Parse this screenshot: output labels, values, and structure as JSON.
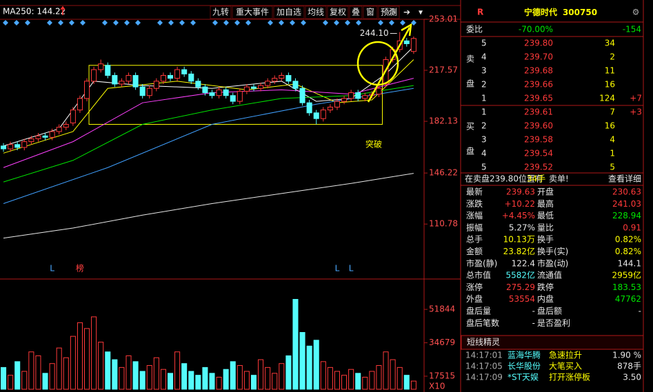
{
  "toolbar": {
    "ma": "MA250: 144.22",
    "buttons": [
      "九转",
      "重大事件",
      "加自选",
      "均线",
      "复权",
      "叠",
      "窗",
      "预测"
    ]
  },
  "chart_data": [
    {
      "type": "candlestick",
      "xlim": [
        -0.5,
        60.5
      ],
      "ylim": [
        75,
        256.8
      ],
      "yticks": [
        253.01,
        217.57,
        182.13,
        146.22,
        110.78
      ],
      "up_color": "#ff3a3a",
      "down_color": "#54fcfc",
      "open": [
        165,
        163,
        166,
        164,
        168,
        170,
        172,
        171,
        175,
        178,
        181,
        190,
        198,
        210,
        218,
        221,
        214,
        208,
        210,
        214,
        206,
        200,
        205,
        210,
        214,
        212,
        218,
        215,
        210,
        206,
        202,
        200,
        204,
        200,
        196,
        203,
        206,
        205,
        207,
        210,
        212,
        214,
        210,
        205,
        195,
        188,
        184,
        190,
        192,
        196,
        198,
        202,
        198,
        200,
        201,
        208,
        225,
        232,
        238,
        230.63
      ],
      "high": [
        167,
        168,
        168,
        170,
        172,
        174,
        174,
        177,
        180,
        182,
        192,
        200,
        212,
        220,
        225,
        223,
        216,
        212,
        216,
        216,
        208,
        207,
        212,
        216,
        216,
        220,
        220,
        217,
        212,
        208,
        204,
        206,
        206,
        202,
        205,
        208,
        208,
        209,
        212,
        214,
        216,
        216,
        212,
        207,
        197,
        190,
        192,
        194,
        198,
        200,
        204,
        204,
        202,
        203,
        207,
        227,
        234,
        244.1,
        240,
        241.03
      ],
      "low": [
        161,
        161,
        162,
        162,
        166,
        168,
        169,
        169,
        173,
        176,
        179,
        188,
        196,
        208,
        216,
        212,
        206,
        206,
        208,
        204,
        198,
        198,
        203,
        208,
        210,
        210,
        213,
        208,
        204,
        200,
        198,
        198,
        198,
        194,
        194,
        201,
        203,
        203,
        205,
        208,
        210,
        208,
        203,
        193,
        186,
        180,
        182,
        188,
        190,
        194,
        196,
        196,
        196,
        198,
        199,
        206,
        223,
        230,
        234,
        228.94
      ],
      "close": [
        163,
        166,
        164,
        168,
        170,
        172,
        171,
        175,
        178,
        180,
        190,
        198,
        210,
        218,
        222,
        214,
        208,
        210,
        214,
        206,
        200,
        205,
        210,
        214,
        212,
        218,
        215,
        210,
        206,
        202,
        200,
        204,
        200,
        196,
        203,
        206,
        205,
        207,
        210,
        212,
        214,
        210,
        205,
        195,
        188,
        184,
        190,
        192,
        196,
        198,
        202,
        198,
        200,
        201,
        205,
        225,
        232,
        238,
        236,
        239.63
      ],
      "high_label": "244.10",
      "annotation": "突破",
      "range_box": {
        "low": 180,
        "high": 221
      },
      "moving_averages": [
        {
          "color": "#ffffff",
          "x": [
            0,
            8,
            13,
            20,
            30,
            40,
            45,
            50,
            55,
            59
          ],
          "values": [
            165,
            177,
            210,
            207,
            205,
            210,
            196,
            198,
            215,
            234
          ]
        },
        {
          "color": "#ffff00",
          "x": [
            0,
            10,
            15,
            25,
            35,
            42,
            48,
            53,
            59
          ],
          "values": [
            160,
            175,
            205,
            210,
            204,
            208,
            195,
            197,
            225
          ]
        },
        {
          "color": "#ff40ff",
          "x": [
            0,
            10,
            20,
            30,
            40,
            50,
            59
          ],
          "values": [
            150,
            168,
            195,
            202,
            204,
            201,
            212
          ]
        },
        {
          "color": "#00e600",
          "x": [
            0,
            10,
            20,
            30,
            40,
            50,
            59
          ],
          "values": [
            140,
            155,
            180,
            190,
            198,
            200,
            207
          ]
        },
        {
          "color": "#40a0ff",
          "x": [
            0,
            15,
            30,
            45,
            59
          ],
          "values": [
            125,
            150,
            180,
            194,
            205
          ]
        },
        {
          "color": "#e8e8e8",
          "x": [
            0,
            10,
            20,
            30,
            40,
            50,
            59
          ],
          "values": [
            101,
            108,
            117,
            125,
            132,
            139,
            146
          ]
        }
      ],
      "markers": [
        {
          "label": "L",
          "x": 7
        },
        {
          "label": "榜",
          "x": 11
        },
        {
          "label": "L",
          "x": 48
        },
        {
          "label": "L",
          "x": 50
        }
      ]
    },
    {
      "type": "bar",
      "ylim": [
        10800,
        63900
      ],
      "yticks": [
        17515,
        34679,
        51844
      ],
      "unit_label": "X10",
      "values": [
        22000,
        18000,
        25000,
        20000,
        30000,
        28000,
        19000,
        24000,
        32000,
        27000,
        38000,
        45000,
        42000,
        48000,
        35000,
        30000,
        26000,
        22000,
        28000,
        25000,
        20000,
        23000,
        27000,
        21000,
        19000,
        30000,
        24000,
        20000,
        18000,
        22000,
        19000,
        17000,
        21000,
        25000,
        23000,
        20000,
        18000,
        26000,
        22000,
        19000,
        24000,
        28000,
        57000,
        40000,
        33000,
        36000,
        25000,
        22000,
        20000,
        18000,
        21000,
        19000,
        17000,
        20000,
        23000,
        30000,
        26000,
        22000,
        18000,
        15000
      ]
    }
  ],
  "quote": {
    "flag": "R",
    "name": "宁德时代",
    "code": "300750",
    "weibi": {
      "label": "委比",
      "ratio": "-70.00%",
      "diff": "-154"
    },
    "sell_label": [
      "卖",
      "盘"
    ],
    "buy_label": [
      "买",
      "盘"
    ],
    "sell": [
      {
        "level": "5",
        "price": "239.80",
        "volume": "34"
      },
      {
        "level": "4",
        "price": "239.70",
        "volume": "2"
      },
      {
        "level": "3",
        "price": "239.68",
        "volume": "11"
      },
      {
        "level": "2",
        "price": "239.66",
        "volume": "16"
      },
      {
        "level": "1",
        "price": "239.65",
        "volume": "124",
        "change": "+7"
      }
    ],
    "buy": [
      {
        "level": "1",
        "price": "239.61",
        "volume": "7",
        "change": "+3"
      },
      {
        "level": "2",
        "price": "239.60",
        "volume": "16"
      },
      {
        "level": "3",
        "price": "239.58",
        "volume": "4"
      },
      {
        "level": "4",
        "price": "239.54",
        "volume": "1"
      },
      {
        "level": "5",
        "price": "239.52",
        "volume": "5"
      }
    ],
    "status": [
      "在卖盘239.80位置有",
      "34手",
      "卖单!",
      "查看详细"
    ],
    "stats": [
      [
        "最新",
        "239.63",
        "开盘",
        "230.63"
      ],
      [
        "涨跌",
        "+10.22",
        "最高",
        "241.03"
      ],
      [
        "涨幅",
        "+4.45%",
        "最低",
        "228.94"
      ],
      [
        "振幅",
        "5.27%",
        "量比",
        "0.91"
      ],
      [
        "总手",
        "10.13万",
        "换手",
        "0.82%"
      ],
      [
        "金额",
        "23.82亿",
        "换手(实)",
        "0.82%"
      ],
      [
        "市盈(静)",
        "122.4",
        "市盈(动)",
        "144.1"
      ],
      [
        "总市值",
        "5582亿",
        "流通值",
        "2959亿"
      ],
      [
        "涨停",
        "275.29",
        "跌停",
        "183.53"
      ],
      [
        "外盘",
        "53554",
        "内盘",
        "47762"
      ],
      [
        "盘后量",
        "-",
        "盘后额",
        "-"
      ],
      [
        "盘后笔数",
        "-",
        "是否盈利"
      ]
    ],
    "feed": {
      "title": "短线精灵",
      "rows": [
        [
          "14:17:01",
          "蓝海华腾",
          "急速拉升",
          "1.90 %"
        ],
        [
          "14:17:05",
          "长华股份",
          "大笔买入",
          "878手"
        ],
        [
          "14:17:09",
          "*ST天娱",
          "打开涨停板",
          "3.50"
        ]
      ]
    }
  }
}
